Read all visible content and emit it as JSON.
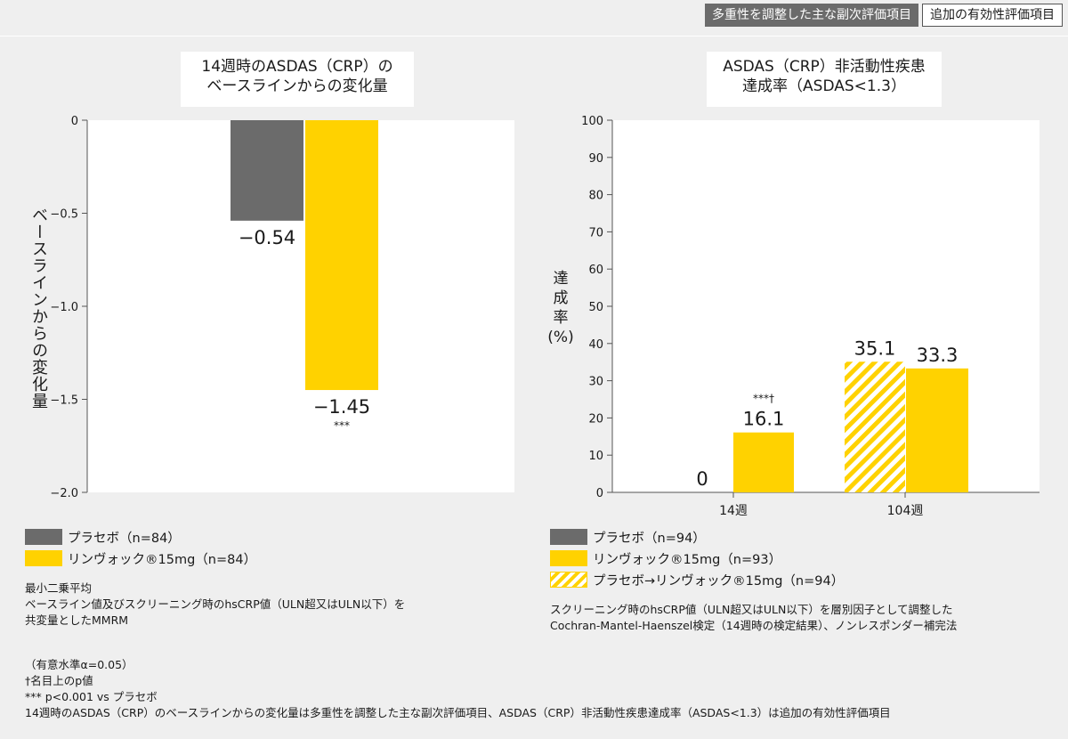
{
  "badges": {
    "primary": "多重性を調整した主な副次評価項目",
    "additional": "追加の有効性評価項目"
  },
  "colors": {
    "placebo": "#6b6b6b",
    "upadacitinib": "#ffd200",
    "switch_hatch": "#ffd200"
  },
  "chart_data": [
    {
      "type": "bar",
      "title_lines": [
        "14週時のASDAS（CRP）の",
        "ベースラインからの変化量"
      ],
      "ylabel": "ベースラインからの変化量",
      "ylim": [
        -2.0,
        0
      ],
      "yticks": [
        0,
        -0.5,
        -1.0,
        -1.5,
        -2.0
      ],
      "ytick_labels": [
        "0",
        "−0.5",
        "−1.0",
        "−1.5",
        "−2.0"
      ],
      "series": [
        {
          "name": "プラセボ（n=84）",
          "values": [
            -0.54
          ],
          "labels": [
            "−0.54"
          ]
        },
        {
          "name": "リンヴォック®15mg（n=84）",
          "values": [
            -1.45
          ],
          "labels": [
            "−1.45"
          ],
          "annotation": "***"
        }
      ]
    },
    {
      "type": "bar",
      "title_lines": [
        "ASDAS（CRP）非活動性疾患",
        "達成率（ASDAS<1.3）"
      ],
      "ylabel_lines": [
        "達",
        "成",
        "率",
        "(%)"
      ],
      "ylim": [
        0,
        100
      ],
      "yticks": [
        0,
        10,
        20,
        30,
        40,
        50,
        60,
        70,
        80,
        90,
        100
      ],
      "categories": [
        "14週",
        "104週"
      ],
      "series": [
        {
          "name": "プラセボ（n=94）",
          "values": [
            0,
            null
          ],
          "labels": [
            "0",
            ""
          ]
        },
        {
          "name": "リンヴォック®15mg（n=93）",
          "values": [
            16.1,
            33.3
          ],
          "labels": [
            "16.1",
            "33.3"
          ],
          "annotation": "***†"
        },
        {
          "name": "プラセボ→リンヴォック®15mg（n=94）",
          "values": [
            null,
            35.1
          ],
          "labels": [
            "",
            "35.1"
          ]
        }
      ]
    }
  ],
  "legend_left": {
    "placebo": "プラセボ（n=84）",
    "upa": "リンヴォック®15mg（n=84）"
  },
  "legend_right": {
    "placebo": "プラセボ（n=94）",
    "upa": "リンヴォック®15mg（n=93）",
    "switch": "プラセボ→リンヴォック®15mg（n=94）"
  },
  "note_left": [
    "最小二乗平均",
    "ベースライン値及びスクリーニング時のhsCRP値（ULN超又はULN以下）を",
    "共変量としたMMRM"
  ],
  "note_right": [
    "スクリーニング時のhsCRP値（ULN超又はULN以下）を層別因子として調整した",
    "Cochran-Mantel-Haenszel検定（14週時の検定結果）、ノンレスポンダー補完法"
  ],
  "footnotes": [
    "（有意水準α=0.05）",
    "†名目上のp値",
    "*** p<0.001 vs プラセボ",
    "14週時のASDAS（CRP）のベースラインからの変化量は多重性を調整した主な副次評価項目、ASDAS（CRP）非活動性疾患達成率（ASDAS<1.3）は追加の有効性評価項目"
  ]
}
